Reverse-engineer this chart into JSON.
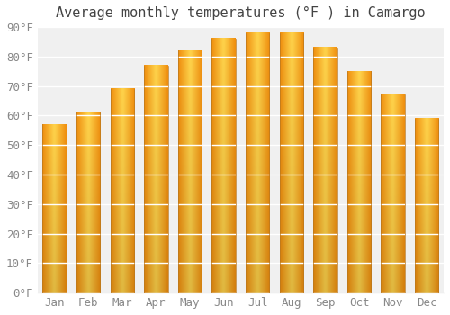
{
  "title": "Average monthly temperatures (°F ) in Camargo",
  "months": [
    "Jan",
    "Feb",
    "Mar",
    "Apr",
    "May",
    "Jun",
    "Jul",
    "Aug",
    "Sep",
    "Oct",
    "Nov",
    "Dec"
  ],
  "values": [
    57,
    61,
    69,
    77,
    82,
    86,
    88,
    88,
    83,
    75,
    67,
    59
  ],
  "bar_color_light": "#FFD966",
  "bar_color_dark": "#F5A623",
  "bar_edge_color": "#C8811A",
  "background_color": "#ffffff",
  "plot_bg_color": "#f0f0f0",
  "grid_color": "#ffffff",
  "ylim": [
    0,
    90
  ],
  "yticks": [
    0,
    10,
    20,
    30,
    40,
    50,
    60,
    70,
    80,
    90
  ],
  "ytick_labels": [
    "0°F",
    "10°F",
    "20°F",
    "30°F",
    "40°F",
    "50°F",
    "60°F",
    "70°F",
    "80°F",
    "90°F"
  ],
  "tick_fontsize": 9,
  "title_fontsize": 11,
  "title_font": "monospace",
  "tick_color": "#888888"
}
